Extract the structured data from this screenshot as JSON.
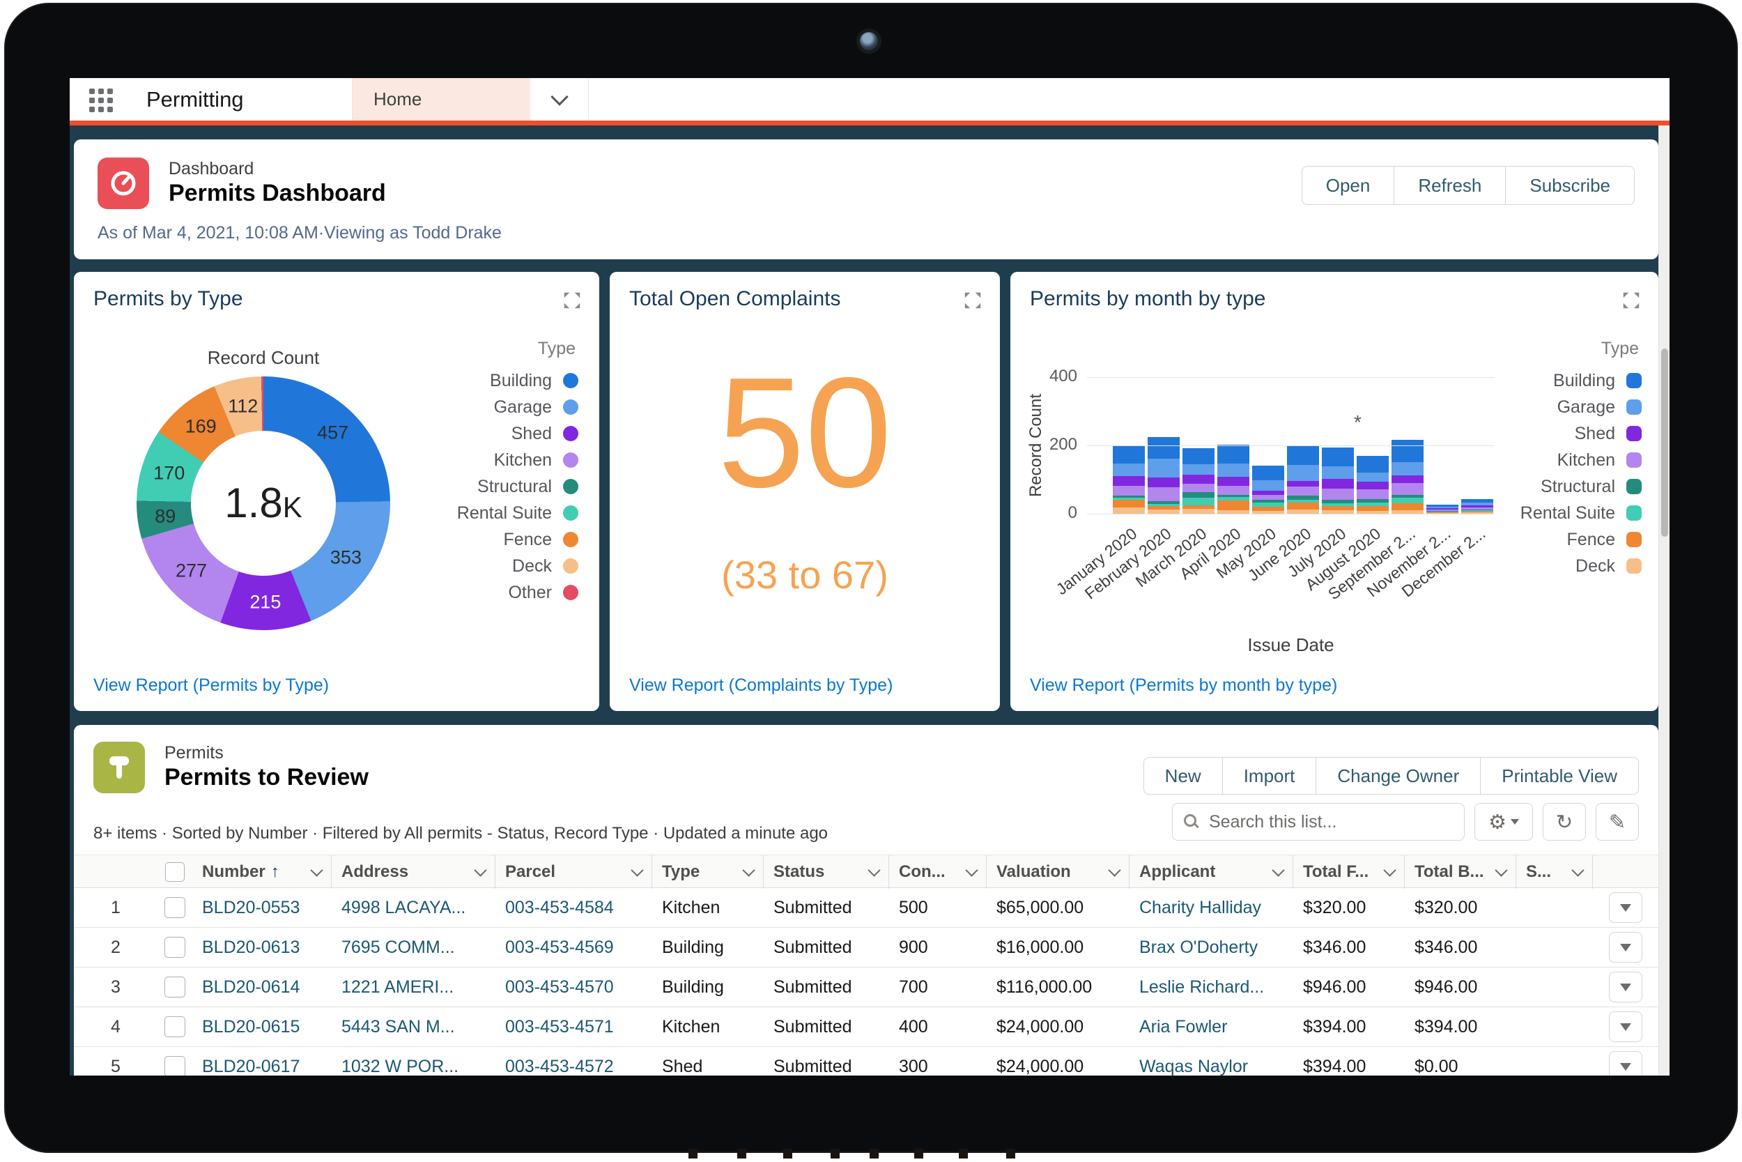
{
  "nav": {
    "app_name": "Permitting",
    "tab_label": "Home",
    "accent_color": "#ef4e29"
  },
  "header": {
    "record_type": "Dashboard",
    "title": "Permits Dashboard",
    "meta": "As of Mar 4, 2021, 10:08 AM·Viewing as Todd Drake",
    "buttons": [
      "Open",
      "Refresh",
      "Subscribe"
    ]
  },
  "cards": {
    "permits_by_type": {
      "title": "Permits by Type",
      "link": "View Report (Permits by Type)"
    },
    "complaints": {
      "title": "Total Open Complaints",
      "value": "50",
      "range": "(33 to 67)",
      "link": "View Report (Complaints by Type)",
      "accent": "#F5A352"
    },
    "by_month": {
      "title": "Permits by month by type",
      "link": "View Report (Permits by month by type)"
    }
  },
  "chart_data": [
    {
      "type": "pie",
      "title": "Record Count",
      "center_label": "1.8K",
      "legend_title": "Type",
      "legend_position": "right",
      "segments": [
        {
          "label": "Building",
          "value": 457,
          "color": "#2176d9"
        },
        {
          "label": "Garage",
          "value": 353,
          "color": "#5e9eea"
        },
        {
          "label": "Shed",
          "value": 215,
          "color": "#8127e0",
          "label_color": "#ffffff"
        },
        {
          "label": "Kitchen",
          "value": 277,
          "color": "#b385ee"
        },
        {
          "label": "Structural",
          "value": 89,
          "color": "#258b7d"
        },
        {
          "label": "Rental Suite",
          "value": 170,
          "color": "#41cdb4"
        },
        {
          "label": "Fence",
          "value": 169,
          "color": "#ee8632"
        },
        {
          "label": "Deck",
          "value": 112,
          "color": "#f6bf8a"
        },
        {
          "label": "Other",
          "value": 5,
          "color": "#e54b63",
          "show_value": false
        }
      ]
    },
    {
      "type": "bar",
      "stacked": true,
      "title": "Permits by month by type",
      "xlabel": "Issue Date",
      "ylabel": "Record Count",
      "ylim": [
        0,
        400
      ],
      "yticks": [
        0,
        200,
        400
      ],
      "grid": true,
      "legend_title": "Type",
      "legend_position": "right",
      "categories": [
        "January 2020",
        "February 2020",
        "March 2020",
        "April 2020",
        "May 2020",
        "June 2020",
        "July 2020",
        "August 2020",
        "September 2...",
        "November 2...",
        "December 2..."
      ],
      "annotation": {
        "text": "*",
        "above_category": "August 2020"
      },
      "series": [
        {
          "name": "Building",
          "color": "#2176d9",
          "values": [
            52,
            62,
            45,
            54,
            42,
            58,
            56,
            50,
            65,
            6,
            11
          ]
        },
        {
          "name": "Garage",
          "color": "#5e9eea",
          "values": [
            38,
            56,
            32,
            40,
            31,
            46,
            36,
            26,
            40,
            5,
            7
          ]
        },
        {
          "name": "Shed",
          "color": "#8127e0",
          "values": [
            28,
            28,
            26,
            26,
            12,
            16,
            28,
            22,
            22,
            3,
            6
          ]
        },
        {
          "name": "Kitchen",
          "color": "#b385ee",
          "values": [
            28,
            42,
            24,
            26,
            16,
            26,
            34,
            30,
            34,
            4,
            6
          ]
        },
        {
          "name": "Structural",
          "color": "#258b7d",
          "values": [
            6,
            8,
            18,
            6,
            8,
            14,
            10,
            10,
            8,
            2,
            3
          ]
        },
        {
          "name": "Rental Suite",
          "color": "#41cdb4",
          "values": [
            8,
            6,
            22,
            12,
            12,
            8,
            8,
            10,
            18,
            2,
            3
          ]
        },
        {
          "name": "Fence",
          "color": "#ee8632",
          "values": [
            22,
            10,
            10,
            28,
            11,
            20,
            12,
            14,
            20,
            2,
            3
          ]
        },
        {
          "name": "Deck",
          "color": "#f6bf8a",
          "values": [
            18,
            12,
            14,
            10,
            9,
            12,
            10,
            8,
            10,
            3,
            4
          ]
        }
      ]
    }
  ],
  "list": {
    "record_type": "Permits",
    "title": "Permits to Review",
    "meta": "8+ items · Sorted by Number · Filtered by All permits - Status, Record Type · Updated a minute ago",
    "buttons": [
      "New",
      "Import",
      "Change Owner",
      "Printable View"
    ],
    "search_placeholder": "Search this list...",
    "sorted_column": "Number",
    "columns": [
      "Number",
      "Address",
      "Parcel",
      "Type",
      "Status",
      "Con...",
      "Valuation",
      "Applicant",
      "Total F...",
      "Total B...",
      "S..."
    ],
    "rows": [
      {
        "n": "1",
        "number": "BLD20-0553",
        "address": "4998 LACAYA...",
        "parcel": "003-453-4584",
        "type": "Kitchen",
        "status": "Submitted",
        "con": "500",
        "valuation": "$65,000.00",
        "applicant": "Charity Halliday",
        "total_f": "$320.00",
        "total_b": "$320.00",
        "s": ""
      },
      {
        "n": "2",
        "number": "BLD20-0613",
        "address": "7695 COMM...",
        "parcel": "003-453-4569",
        "type": "Building",
        "status": "Submitted",
        "con": "900",
        "valuation": "$16,000.00",
        "applicant": "Brax O'Doherty",
        "total_f": "$346.00",
        "total_b": "$346.00",
        "s": ""
      },
      {
        "n": "3",
        "number": "BLD20-0614",
        "address": "1221 AMERI...",
        "parcel": "003-453-4570",
        "type": "Building",
        "status": "Submitted",
        "con": "700",
        "valuation": "$116,000.00",
        "applicant": "Leslie Richard...",
        "total_f": "$946.00",
        "total_b": "$946.00",
        "s": ""
      },
      {
        "n": "4",
        "number": "BLD20-0615",
        "address": "5443 SAN M...",
        "parcel": "003-453-4571",
        "type": "Kitchen",
        "status": "Submitted",
        "con": "400",
        "valuation": "$24,000.00",
        "applicant": "Aria Fowler",
        "total_f": "$394.00",
        "total_b": "$394.00",
        "s": ""
      },
      {
        "n": "5",
        "number": "BLD20-0617",
        "address": "1032 W POR...",
        "parcel": "003-453-4572",
        "type": "Shed",
        "status": "Submitted",
        "con": "300",
        "valuation": "$24,000.00",
        "applicant": "Waqas Naylor",
        "total_f": "$394.00",
        "total_b": "$0.00",
        "s": ""
      }
    ]
  }
}
